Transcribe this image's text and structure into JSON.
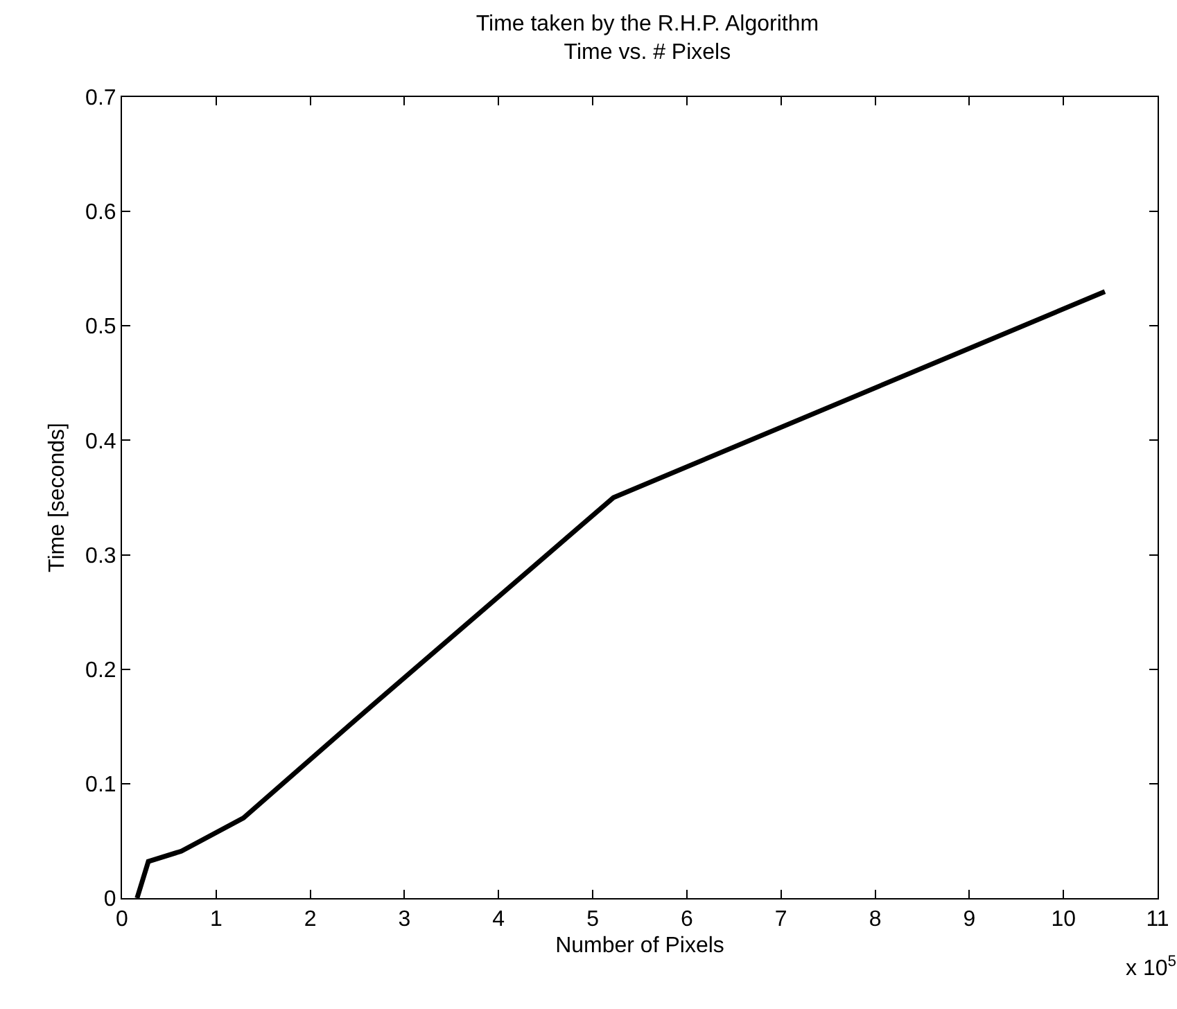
{
  "chart_data": {
    "type": "line",
    "title": "Time taken by the R.H.P. Algorithm",
    "subtitle": "Time vs. # Pixels",
    "xlabel": "Number of Pixels",
    "ylabel": "Time [seconds]",
    "annotations": [
      "x 10$^{5}$"
    ],
    "x": [
      0.16,
      0.28,
      0.63,
      1.29,
      2.54,
      5.22,
      10.44
    ],
    "series": [
      {
        "color": "#000000",
        "values": [
          0,
          0.032,
          0.041,
          0.07,
          0.16,
          0.35,
          0.53
        ]
      }
    ],
    "xlim": [
      0,
      11
    ],
    "xticks": [
      0,
      1,
      2,
      3,
      4,
      5,
      6,
      7,
      8,
      9,
      10,
      11
    ],
    "ylim": [
      0,
      0.7
    ],
    "yticks": [
      0,
      0.1,
      0.2,
      0.3,
      0.4,
      0.5,
      0.6,
      0.7
    ],
    "grid": false,
    "marker": "none",
    "line_style": "solid"
  }
}
